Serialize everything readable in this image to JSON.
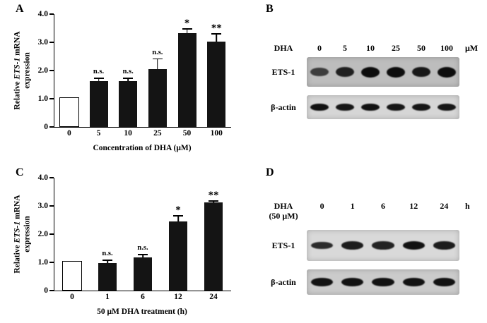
{
  "panels": {
    "a": {
      "label": "A"
    },
    "b": {
      "label": "B"
    },
    "c": {
      "label": "C"
    },
    "d": {
      "label": "D"
    }
  },
  "chart_data": [
    {
      "type": "bar",
      "panel": "A",
      "title": "",
      "ylabel": "Relative ETS-1 mRNA expression",
      "ylabel_parts": {
        "prefix": "Relative ",
        "italic": "ETS-1",
        "suffix": " mRNA expression"
      },
      "xlabel": "Concentration of DHA (μM)",
      "ylim": [
        0,
        4.0
      ],
      "yticks": [
        0,
        1.0,
        2.0,
        3.0,
        4.0
      ],
      "ytick_labels": [
        "0",
        "1.0",
        "2.0",
        "3.0",
        "4.0"
      ],
      "categories": [
        "0",
        "5",
        "10",
        "25",
        "50",
        "100"
      ],
      "values": [
        1.0,
        1.62,
        1.63,
        2.05,
        3.32,
        3.02
      ],
      "errors": [
        0,
        0.12,
        0.12,
        0.38,
        0.18,
        0.3
      ],
      "annotations": [
        "",
        "n.s.",
        "n.s.",
        "n.s.",
        "*",
        "**"
      ],
      "bar_fills": [
        "#ffffff",
        "#141414",
        "#141414",
        "#141414",
        "#141414",
        "#141414"
      ],
      "grid": false,
      "legend": false
    },
    {
      "type": "bar",
      "panel": "C",
      "title": "",
      "ylabel": "Relative ETS-1 mRNA expression",
      "ylabel_parts": {
        "prefix": "Relative ",
        "italic": "ETS-1",
        "suffix": " mRNA expression"
      },
      "xlabel": "50 μM DHA treatment (h)",
      "ylim": [
        0,
        4.0
      ],
      "yticks": [
        0,
        1.0,
        2.0,
        3.0,
        4.0
      ],
      "ytick_labels": [
        "0",
        "1.0",
        "2.0",
        "3.0",
        "4.0"
      ],
      "categories": [
        "0",
        "1",
        "6",
        "12",
        "24"
      ],
      "values": [
        1.0,
        0.97,
        1.18,
        2.45,
        3.12
      ],
      "errors": [
        0,
        0.13,
        0.12,
        0.22,
        0.08
      ],
      "annotations": [
        "",
        "n.s.",
        "n.s.",
        "*",
        "**"
      ],
      "bar_fills": [
        "#ffffff",
        "#141414",
        "#141414",
        "#141414",
        "#141414"
      ],
      "grid": false,
      "legend": false
    }
  ],
  "blots": {
    "b": {
      "treatment_label_lines": [
        "DHA"
      ],
      "lanes": [
        "0",
        "5",
        "10",
        "25",
        "50",
        "100"
      ],
      "unit": "μM",
      "rows": [
        {
          "label": "ETS-1",
          "bg": "#bdbdbd",
          "band_height": 15,
          "intensities": [
            0.5,
            0.8,
            1.0,
            1.0,
            0.88,
            1.0
          ]
        },
        {
          "label": "β-actin",
          "bg": "#d6d6d6",
          "band_height": 11,
          "intensities": [
            0.95,
            0.9,
            0.95,
            0.9,
            0.9,
            0.9
          ]
        }
      ]
    },
    "d": {
      "treatment_label_lines": [
        "DHA",
        "(50 μM)"
      ],
      "lanes": [
        "0",
        "1",
        "6",
        "12",
        "24"
      ],
      "unit": "h",
      "rows": [
        {
          "label": "ETS-1",
          "bg": "#d9d9d9",
          "band_height": 12,
          "intensities": [
            0.72,
            0.85,
            0.8,
            0.95,
            0.85
          ]
        },
        {
          "label": "β-actin",
          "bg": "#cbcbcb",
          "band_height": 13,
          "intensities": [
            0.95,
            0.95,
            0.95,
            0.95,
            0.95
          ]
        }
      ]
    }
  }
}
